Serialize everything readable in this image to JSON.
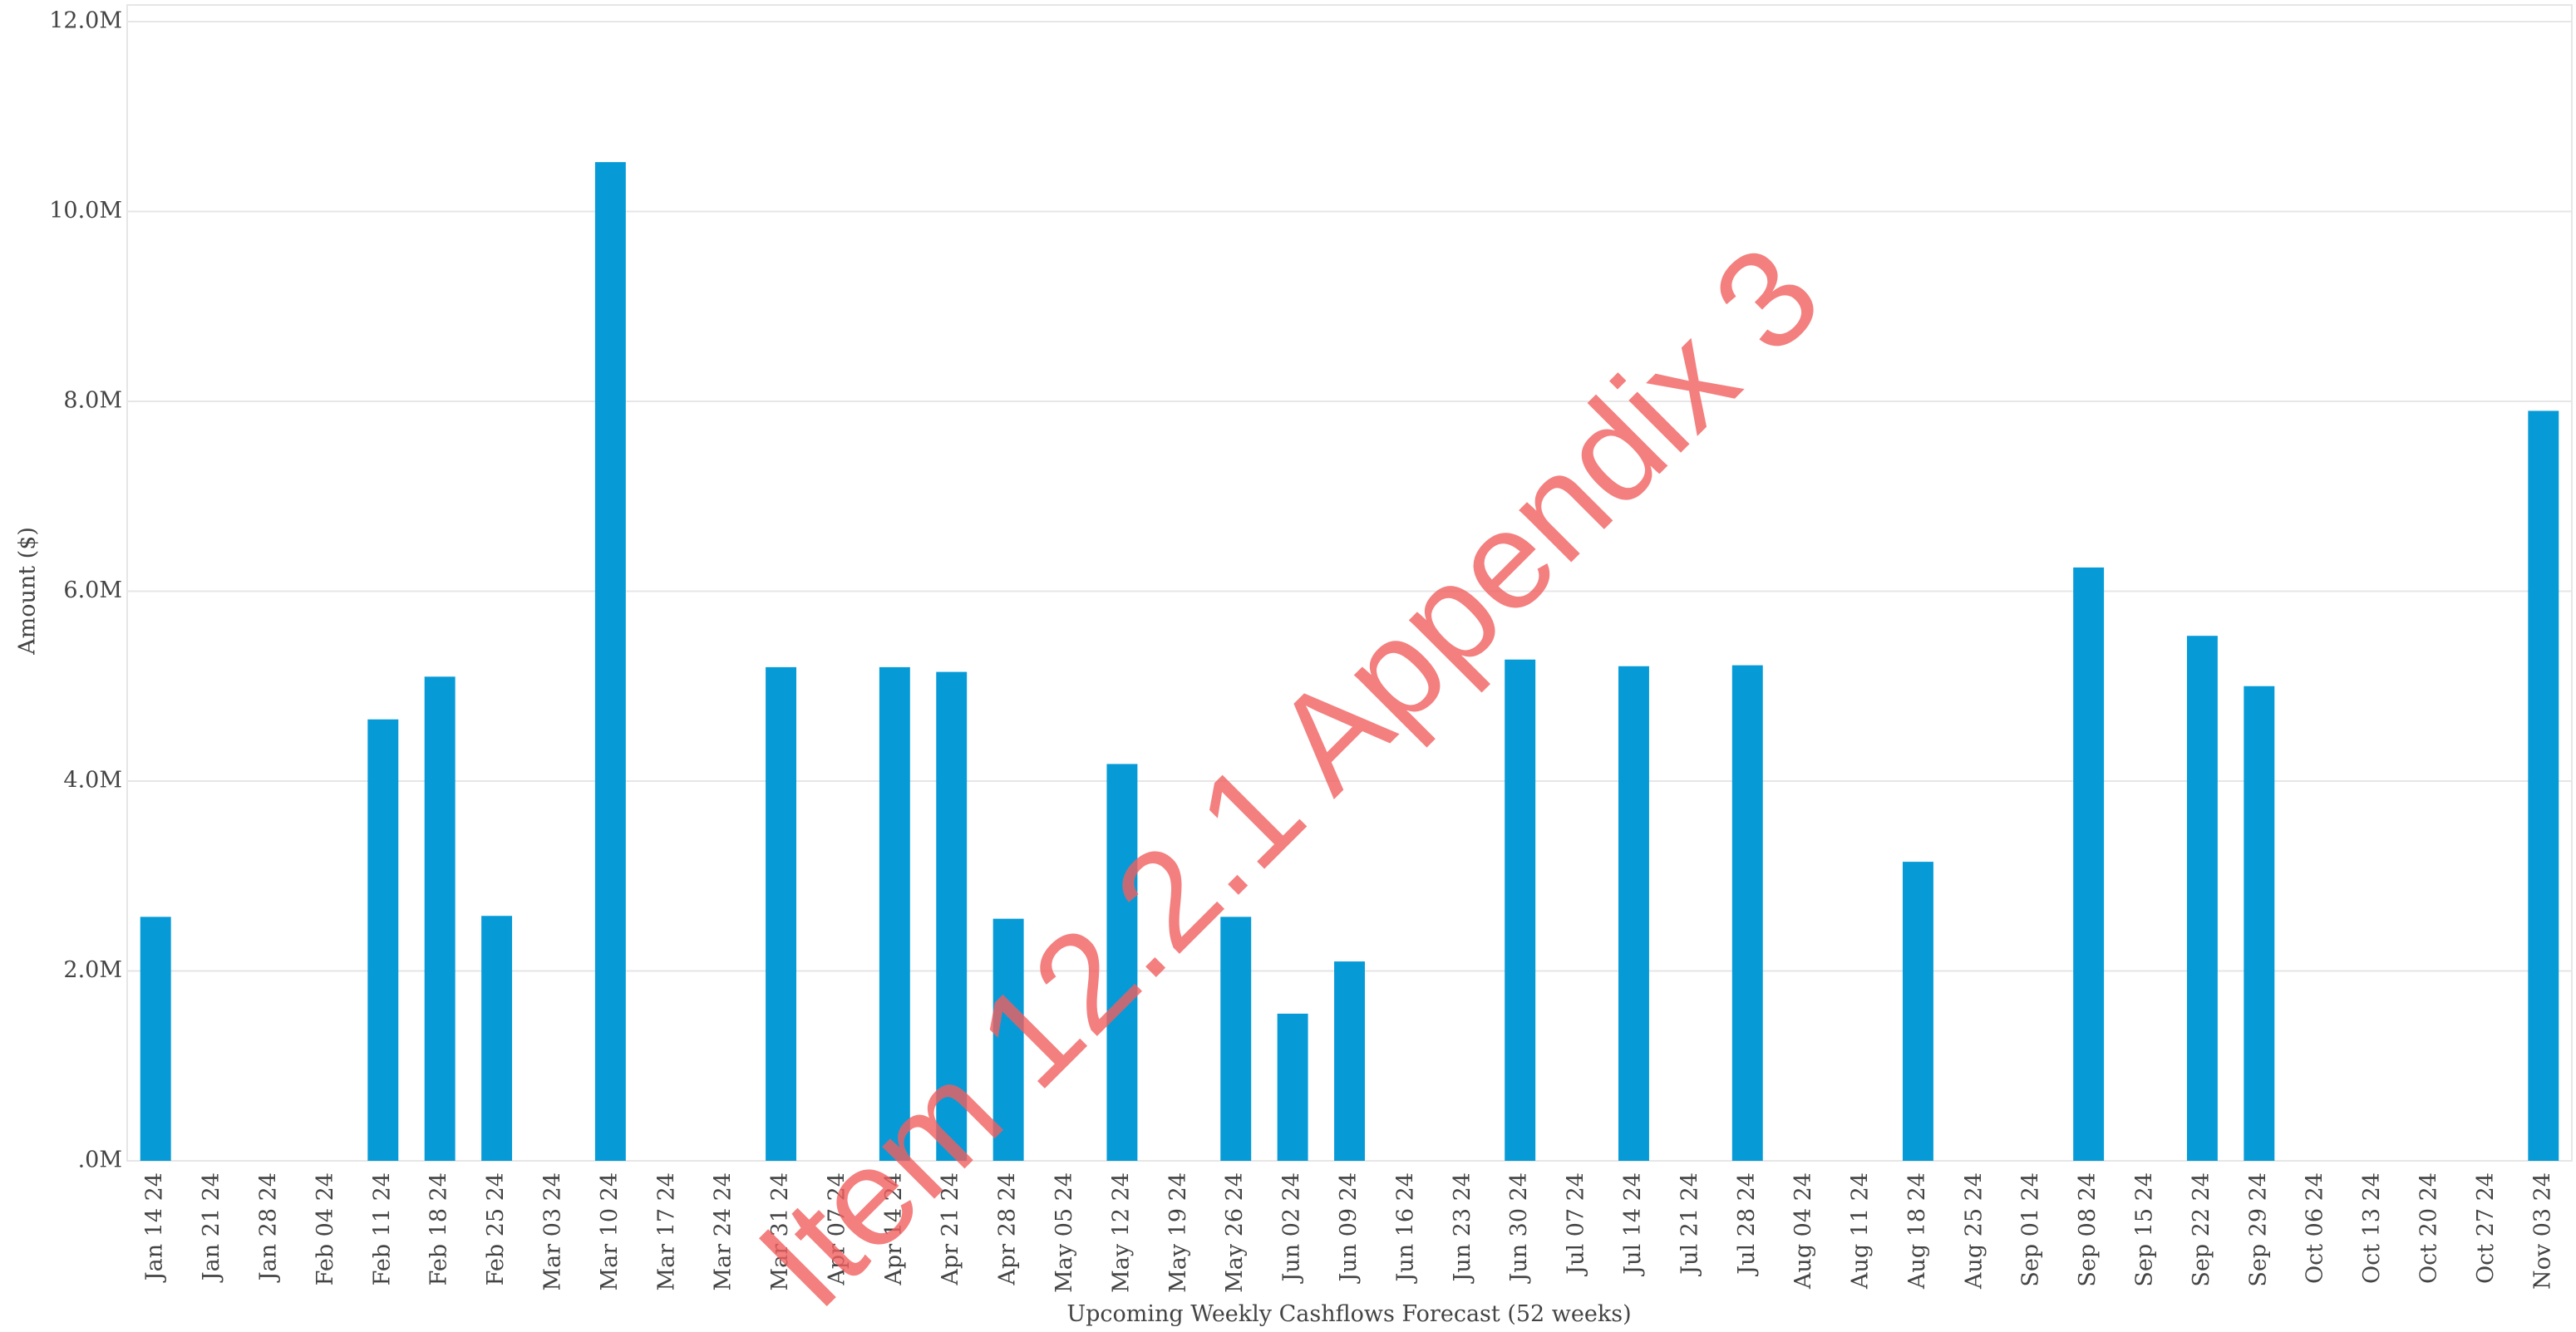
{
  "chart_data": {
    "type": "bar",
    "ylabel": "Amount ($)",
    "xlabel": "Upcoming Weekly Cashflows Forecast (52 weeks)",
    "annotation": "Item 12.2.1 Appendix 3",
    "categories": [
      "Jan 14 24",
      "Jan 21 24",
      "Jan 28 24",
      "Feb 04 24",
      "Feb 11 24",
      "Feb 18 24",
      "Feb 25 24",
      "Mar 03 24",
      "Mar 10 24",
      "Mar 17 24",
      "Mar 24 24",
      "Mar 31 24",
      "Apr 07 24",
      "Apr 14 24",
      "Apr 21 24",
      "Apr 28 24",
      "May 05 24",
      "May 12 24",
      "May 19 24",
      "May 26 24",
      "Jun 02 24",
      "Jun 09 24",
      "Jun 16 24",
      "Jun 23 24",
      "Jun 30 24",
      "Jul 07 24",
      "Jul 14 24",
      "Jul 21 24",
      "Jul 28 24",
      "Aug 04 24",
      "Aug 11 24",
      "Aug 18 24",
      "Aug 25 24",
      "Sep 01 24",
      "Sep 08 24",
      "Sep 15 24",
      "Sep 22 24",
      "Sep 29 24",
      "Oct 06 24",
      "Oct 13 24",
      "Oct 20 24",
      "Oct 27 24",
      "Nov 03 24"
    ],
    "values": [
      2570000,
      0,
      0,
      0,
      4650000,
      5100000,
      2580000,
      0,
      10520000,
      0,
      0,
      5200000,
      0,
      5200000,
      5150000,
      2550000,
      0,
      4180000,
      0,
      2570000,
      1550000,
      2100000,
      0,
      0,
      5280000,
      0,
      5210000,
      0,
      5220000,
      0,
      0,
      3150000,
      0,
      0,
      6250000,
      0,
      5530000,
      5000000,
      0,
      0,
      0,
      0,
      7900000
    ],
    "color": "#069bd7",
    "ylim": [
      0,
      12000000
    ],
    "yticks": [
      {
        "value": 0,
        "label": ".0M"
      },
      {
        "value": 2000000,
        "label": "2.0M"
      },
      {
        "value": 4000000,
        "label": "4.0M"
      },
      {
        "value": 6000000,
        "label": "6.0M"
      },
      {
        "value": 8000000,
        "label": "8.0M"
      },
      {
        "value": 10000000,
        "label": "10.0M"
      },
      {
        "value": 12000000,
        "label": "12.0M"
      }
    ],
    "grid": true
  }
}
